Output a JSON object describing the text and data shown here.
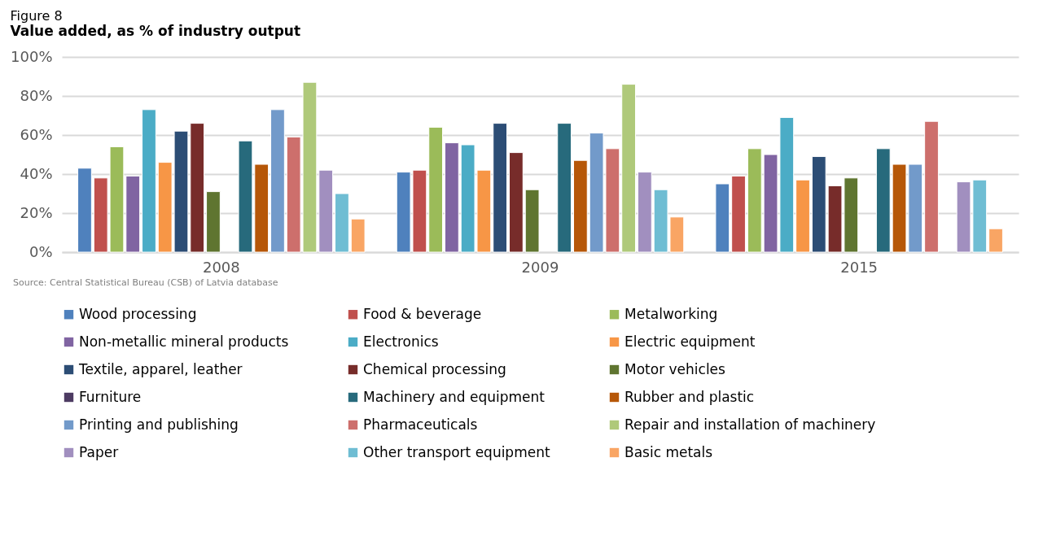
{
  "chart_data": {
    "type": "bar",
    "title": "Figure 8",
    "subtitle": "Value added, as % of industry output",
    "categories": [
      "2008",
      "2009",
      "2015"
    ],
    "series": [
      {
        "name": "Wood processing",
        "color": "#4f81bd",
        "values": [
          43,
          41,
          35
        ]
      },
      {
        "name": "Food & beverage",
        "color": "#c0504d",
        "values": [
          38,
          42,
          39
        ]
      },
      {
        "name": "Metalworking",
        "color": "#9bbb59",
        "values": [
          54,
          64,
          53
        ]
      },
      {
        "name": "Non-metallic mineral products",
        "color": "#8064a2",
        "values": [
          39,
          56,
          50
        ]
      },
      {
        "name": "Electronics",
        "color": "#4bacc6",
        "values": [
          73,
          55,
          69
        ]
      },
      {
        "name": "Electric equipment",
        "color": "#f79646",
        "values": [
          46,
          42,
          37
        ]
      },
      {
        "name": "Textile, apparel, leather",
        "color": "#2c4d75",
        "values": [
          62,
          66,
          49
        ]
      },
      {
        "name": "Chemical processing",
        "color": "#772c2a",
        "values": [
          66,
          51,
          34
        ]
      },
      {
        "name": "Motor vehicles",
        "color": "#5f7530",
        "values": [
          31,
          32,
          38
        ]
      },
      {
        "name": "Furniture",
        "color": "#4d3b62",
        "values": [
          null,
          null,
          null
        ]
      },
      {
        "name": "Machinery and equipment",
        "color": "#276a7c",
        "values": [
          57,
          66,
          53
        ]
      },
      {
        "name": "Rubber and plastic",
        "color": "#b65708",
        "values": [
          45,
          47,
          45
        ]
      },
      {
        "name": "Printing and publishing",
        "color": "#729aca",
        "values": [
          73,
          61,
          45
        ]
      },
      {
        "name": "Pharmaceuticals",
        "color": "#cd6f6c",
        "values": [
          59,
          53,
          67
        ]
      },
      {
        "name": "Repair and installation of machinery",
        "color": "#afc97a",
        "values": [
          87,
          86,
          null
        ]
      },
      {
        "name": "Paper",
        "color": "#a18fbf",
        "values": [
          42,
          41,
          36
        ]
      },
      {
        "name": "Other transport equipment",
        "color": "#6fbdd3",
        "values": [
          30,
          32,
          37
        ]
      },
      {
        "name": "Basic metals",
        "color": "#f9a564",
        "values": [
          17,
          18,
          12
        ]
      }
    ],
    "ylim": [
      0,
      100
    ],
    "yticks": [
      {
        "value": 0,
        "label": "0%"
      },
      {
        "value": 20,
        "label": "20%"
      },
      {
        "value": 40,
        "label": "40%"
      },
      {
        "value": 60,
        "label": "60%"
      },
      {
        "value": 80,
        "label": "80%"
      },
      {
        "value": 100,
        "label": "100%"
      }
    ],
    "grid": "y",
    "legend": "bottom",
    "annotations": [
      "Source: Central Statistical Bureau (CSB) of Latvia database"
    ]
  }
}
